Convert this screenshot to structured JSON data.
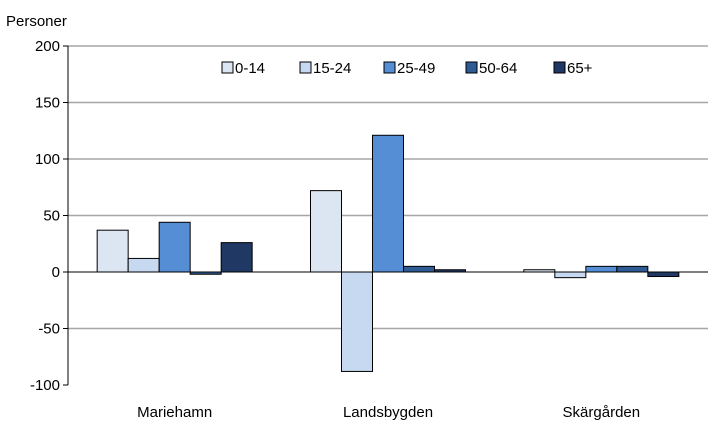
{
  "chart_data": {
    "type": "bar",
    "title": "",
    "ylabel": "Personer",
    "xlabel": "",
    "ylim": [
      -100,
      200
    ],
    "yticks": [
      200,
      150,
      100,
      50,
      0,
      -50,
      -100
    ],
    "grid": true,
    "legend_position": "top-center",
    "categories": [
      "Mariehamn",
      "Landsbygden",
      "Skärgården"
    ],
    "series": [
      {
        "name": "0-14",
        "color": "#dce6f2",
        "values": [
          37,
          72,
          2
        ]
      },
      {
        "name": "15-24",
        "color": "#c6d9f1",
        "values": [
          12,
          -88,
          -5
        ]
      },
      {
        "name": "25-49",
        "color": "#558ed5",
        "values": [
          44,
          121,
          5
        ]
      },
      {
        "name": "50-64",
        "color": "#2e5b94",
        "values": [
          -2,
          5,
          5
        ]
      },
      {
        "name": "65+",
        "color": "#1f3864",
        "values": [
          26,
          2,
          -4
        ]
      }
    ]
  }
}
